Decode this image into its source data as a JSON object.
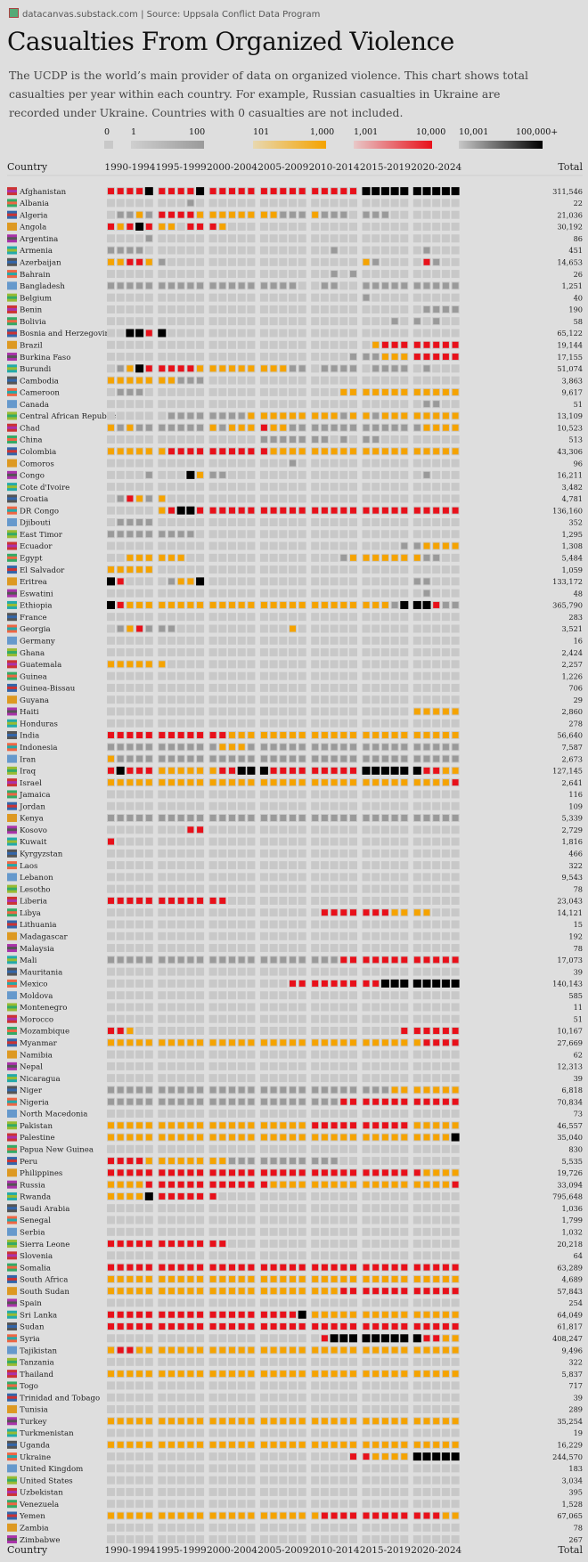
{
  "source_line": "datacanvas.substack.com  |  Source: Uppsala Conflict Data Program",
  "title": "Casualties From Organized Violence",
  "subtitle": "The UCDP is the world’s main provider of data on organized violence. This chart shows total casualties per year within each country. For example, Russian casualties in Ukraine are recorded under Ukraine. Countries with 0 casualties are not included.",
  "colors": {
    "background": "#dedede",
    "empty": "#c8c8c8",
    "tier1": "#9a9a9a",
    "tier2": "#f5a300",
    "tier3": "#e8101a",
    "tier4": "#000000"
  },
  "legend": [
    {
      "low": "0",
      "high": "",
      "color": "#c8c8c8"
    },
    {
      "low": "1",
      "high": "100",
      "color": "#9a9a9a"
    },
    {
      "low": "101",
      "high": "1,000",
      "color": "#f5a300"
    },
    {
      "low": "1,001",
      "high": "10,000",
      "color": "#e8101a"
    },
    {
      "low": "10,001",
      "high": "100,000+",
      "color": "#000000"
    }
  ],
  "chart_data": {
    "type": "heatmap",
    "description_tiers": [
      "0",
      "1-100",
      "101-1,000",
      "1,001-10,000",
      "10,001-100,000+"
    ],
    "col_header": "Country",
    "total_header": "Total",
    "period_labels": [
      "1990-1994",
      "1995-1999",
      "2000-2004",
      "2005-2009",
      "2010-2014",
      "2015-2019",
      "2020-2024"
    ],
    "years": [
      1990,
      2024
    ],
    "rows": [
      {
        "c": "Afghanistan",
        "t": "311,546",
        "v": "33334333343333333333333334444444444"
      },
      {
        "c": "Albania",
        "t": "22",
        "v": "00000000100000000000000000000000000"
      },
      {
        "c": "Algeria",
        "t": "21,036",
        "v": "01121333322222222111211101110000000"
      },
      {
        "c": "Angola",
        "t": "30,192",
        "v": "32343220333200000000000000000000000"
      },
      {
        "c": "Argentina",
        "t": "86",
        "v": "00001000000000000000000000000000000"
      },
      {
        "c": "Armenia",
        "t": "451",
        "v": "11110000000000000000001000000001000"
      },
      {
        "c": "Azerbaijan",
        "t": "14,653",
        "v": "22332100000000000000000002100003100"
      },
      {
        "c": "Bahrain",
        "t": "26",
        "v": "00000000000000000000001010000000000"
      },
      {
        "c": "Bangladesh",
        "t": "1,251",
        "v": "11111111111111111110011001111111111"
      },
      {
        "c": "Belgium",
        "t": "40",
        "v": "00000000000000000000000001000000000"
      },
      {
        "c": "Benin",
        "t": "190",
        "v": "00000000000000000000000000000001111"
      },
      {
        "c": "Bolivia",
        "t": "58",
        "v": "00000000000000000000000000001010100"
      },
      {
        "c": "Bosnia and Herzegovina",
        "t": "65,122",
        "v": "00443400000000000000000000000000000"
      },
      {
        "c": "Brazil",
        "t": "19,144",
        "v": "00000000000000000000000000233333333"
      },
      {
        "c": "Burkina Faso",
        "t": "17,155",
        "v": "00000000000000000000000011122233333"
      },
      {
        "c": "Burundi",
        "t": "51,074",
        "v": "01243333322222222211011110111101000"
      },
      {
        "c": "Cambodia",
        "t": "3,863",
        "v": "22222221110000000000000000000000000"
      },
      {
        "c": "Cameroon",
        "t": "9,617",
        "v": "01110000000000000000000222222222222"
      },
      {
        "c": "Canada",
        "t": "51",
        "v": "00000000000000000000000000000001100"
      },
      {
        "c": "Central African Republic",
        "t": "13,109",
        "v": "00000011111111222222222122122222222"
      },
      {
        "c": "Chad",
        "t": "10,523",
        "v": "21211111112122232211111111111112222"
      },
      {
        "c": "China",
        "t": "513",
        "v": "00000000000000011111110101100000000"
      },
      {
        "c": "Colombia",
        "t": "43,306",
        "v": "22222233333333332222222222222222222"
      },
      {
        "c": "Comoros",
        "t": "96",
        "v": "00000000000000000010000000000000000"
      },
      {
        "c": "Congo",
        "t": "16,211",
        "v": "00001000421100000000000000000001000"
      },
      {
        "c": "Cote d'Ivoire",
        "t": "3,482",
        "v": "00000000000000000000000000000000000"
      },
      {
        "c": "Croatia",
        "t": "4,781",
        "v": "01321200000000000000000000000000000"
      },
      {
        "c": "DR Congo",
        "t": "136,160",
        "v": "00000234433333333333333333333333333"
      },
      {
        "c": "Djibouti",
        "t": "352",
        "v": "01111000000000000000000000000000000"
      },
      {
        "c": "East Timor",
        "t": "1,295",
        "v": "11111111100000000000000000000000000"
      },
      {
        "c": "Ecuador",
        "t": "1,308",
        "v": "00000000000000000000000000000112222"
      },
      {
        "c": "Egypt",
        "t": "5,484",
        "v": "00222222000000000000000122222221100"
      },
      {
        "c": "El Salvador",
        "t": "1,059",
        "v": "22222000000000000000000000000000000"
      },
      {
        "c": "Eritrea",
        "t": "133,172",
        "v": "43000012240000000000000000000011000"
      },
      {
        "c": "Eswatini",
        "t": "48",
        "v": "00000000000000000000000000000001000"
      },
      {
        "c": "Ethiopia",
        "t": "365,790",
        "v": "43222222222222222222222222221444311"
      },
      {
        "c": "France",
        "t": "283",
        "v": "00000000000000000000000000000000000"
      },
      {
        "c": "Georgia",
        "t": "3,521",
        "v": "01231110000000000020000000000000000"
      },
      {
        "c": "Germany",
        "t": "16",
        "v": "00000000000000000000000000000000000"
      },
      {
        "c": "Ghana",
        "t": "2,424",
        "v": "00000000000000000000000000000000000"
      },
      {
        "c": "Guatemala",
        "t": "2,257",
        "v": "22222200000000000000000000000000000"
      },
      {
        "c": "Guinea",
        "t": "1,226",
        "v": "00000000000000000000000000000000000"
      },
      {
        "c": "Guinea-Bissau",
        "t": "706",
        "v": "00000000000000000000000000000000000"
      },
      {
        "c": "Guyana",
        "t": "29",
        "v": "00000000000000000000000000000000000"
      },
      {
        "c": "Haiti",
        "t": "2,860",
        "v": "00000000000000000000000000000022222"
      },
      {
        "c": "Honduras",
        "t": "278",
        "v": "00000000000000000000000000000000000"
      },
      {
        "c": "India",
        "t": "56,640",
        "v": "33333333333322222222222222222222222"
      },
      {
        "c": "Indonesia",
        "t": "7,587",
        "v": "11111111111222111111111111111111111"
      },
      {
        "c": "Iran",
        "t": "2,673",
        "v": "21111111111111111111111111111111111"
      },
      {
        "c": "Iraq",
        "t": "127,145",
        "v": "34333222222334443333333334444443322"
      },
      {
        "c": "Israel",
        "t": "2,641",
        "v": "22222222222222222222222222222222223"
      },
      {
        "c": "Jamaica",
        "t": "116",
        "v": "00000000000000000000000000000000000"
      },
      {
        "c": "Jordan",
        "t": "109",
        "v": "00000000000000000000000000000000000"
      },
      {
        "c": "Kenya",
        "t": "5,339",
        "v": "11111111111111111111111111111111111"
      },
      {
        "c": "Kosovo",
        "t": "2,729",
        "v": "00000000330000000000000000000000000"
      },
      {
        "c": "Kuwait",
        "t": "1,816",
        "v": "30000000000000000000000000000000000"
      },
      {
        "c": "Kyrgyzstan",
        "t": "466",
        "v": "00000000000000000000000000000000000"
      },
      {
        "c": "Laos",
        "t": "322",
        "v": "00000000000000000000000000000000000"
      },
      {
        "c": "Lebanon",
        "t": "9,543",
        "v": "00000000000000000000000000000000000"
      },
      {
        "c": "Lesotho",
        "t": "78",
        "v": "00000000000000000000000000000000000"
      },
      {
        "c": "Liberia",
        "t": "23,043",
        "v": "33333333333300000000000000000000000"
      },
      {
        "c": "Libya",
        "t": "14,121",
        "v": "00000000000000000000033333332222000"
      },
      {
        "c": "Lithuania",
        "t": "15",
        "v": "00000000000000000000000000000000000"
      },
      {
        "c": "Madagascar",
        "t": "192",
        "v": "00000000000000000000000000000000000"
      },
      {
        "c": "Malaysia",
        "t": "78",
        "v": "00000000000000000000000000000000000"
      },
      {
        "c": "Mali",
        "t": "17,073",
        "v": "11111111111111111111111333333333333"
      },
      {
        "c": "Mauritania",
        "t": "39",
        "v": "00000000000000000000000000000000000"
      },
      {
        "c": "Mexico",
        "t": "140,143",
        "v": "00000000000000000033333333344444444"
      },
      {
        "c": "Moldova",
        "t": "585",
        "v": "00000000000000000000000000000000000"
      },
      {
        "c": "Montenegro",
        "t": "11",
        "v": "00000000000000000000000000000000000"
      },
      {
        "c": "Morocco",
        "t": "51",
        "v": "00000000000000000000000000000000000"
      },
      {
        "c": "Mozambique",
        "t": "10,167",
        "v": "33200000000000000000000000000333333"
      },
      {
        "c": "Myanmar",
        "t": "27,669",
        "v": "22222222222222222222222222222223333"
      },
      {
        "c": "Namibia",
        "t": "62",
        "v": "00000000000000000000000000000000000"
      },
      {
        "c": "Nepal",
        "t": "12,313",
        "v": "00000000000000000000000000000000000"
      },
      {
        "c": "Nicaragua",
        "t": "39",
        "v": "00000000000000000000000000000000000"
      },
      {
        "c": "Niger",
        "t": "6,818",
        "v": "11111111111111111111111111112222222"
      },
      {
        "c": "Nigeria",
        "t": "70,834",
        "v": "11111111111111111111111333333333333"
      },
      {
        "c": "North Macedonia",
        "t": "73",
        "v": "00000000000000000000000000000000000"
      },
      {
        "c": "Pakistan",
        "t": "46,557",
        "v": "22222222222222222222333333333322222"
      },
      {
        "c": "Palestine",
        "t": "35,040",
        "v": "22222222222222222222222222222222224"
      },
      {
        "c": "Papua New Guinea",
        "t": "830",
        "v": "00000000000000000000000000000000000"
      },
      {
        "c": "Peru",
        "t": "5,535",
        "v": "33332222222211111111111000000000000"
      },
      {
        "c": "Philippines",
        "t": "19,726",
        "v": "33333333333333333333333333333332222"
      },
      {
        "c": "Russia",
        "t": "33,094",
        "v": "22223333333333332222222222222222223"
      },
      {
        "c": "Rwanda",
        "t": "795,648",
        "v": "22224333333000000000000000000000000"
      },
      {
        "c": "Saudi Arabia",
        "t": "1,036",
        "v": "00000000000000000000000000000000000"
      },
      {
        "c": "Senegal",
        "t": "1,799",
        "v": "00000000000000000000000000000000000"
      },
      {
        "c": "Serbia",
        "t": "1,032",
        "v": "00000000000000000000000000000000000"
      },
      {
        "c": "Sierra Leone",
        "t": "20,218",
        "v": "33333333333300000000000000000000000"
      },
      {
        "c": "Slovenia",
        "t": "64",
        "v": "00000000000000000000000000000000000"
      },
      {
        "c": "Somalia",
        "t": "63,289",
        "v": "33333333333333333333333333333333333"
      },
      {
        "c": "South Africa",
        "t": "4,689",
        "v": "22222222222222222222222222222222222"
      },
      {
        "c": "South Sudan",
        "t": "57,843",
        "v": "22222222222222222222222333333333333"
      },
      {
        "c": "Spain",
        "t": "254",
        "v": "00000000000000000000000000000000000"
      },
      {
        "c": "Sri Lanka",
        "t": "64,049",
        "v": "33333333333333333334222222222222222"
      },
      {
        "c": "Sudan",
        "t": "61,817",
        "v": "33333333333333333333333333333333333"
      },
      {
        "c": "Syria",
        "t": "408,247",
        "v": "00000000000000000000034444444443322"
      },
      {
        "c": "Tajikistan",
        "t": "9,496",
        "v": "23322222222222222222222222222222222"
      },
      {
        "c": "Tanzania",
        "t": "322",
        "v": "00000000000000000000000000000000000"
      },
      {
        "c": "Thailand",
        "t": "5,837",
        "v": "22222222222222222222222222222222222"
      },
      {
        "c": "Togo",
        "t": "717",
        "v": "00000000000000000000000000000000000"
      },
      {
        "c": "Trinidad and Tobago",
        "t": "39",
        "v": "00000000000000000000000000000000000"
      },
      {
        "c": "Tunisia",
        "t": "289",
        "v": "00000000000000000000000000000000000"
      },
      {
        "c": "Turkey",
        "t": "35,254",
        "v": "22222222222222222222222222222222222"
      },
      {
        "c": "Turkmenistan",
        "t": "19",
        "v": "00000000000000000000000000000000000"
      },
      {
        "c": "Uganda",
        "t": "16,229",
        "v": "22222222222222222222222222222222222"
      },
      {
        "c": "Ukraine",
        "t": "244,570",
        "v": "00000000000000000000000033222244444"
      },
      {
        "c": "United Kingdom",
        "t": "183",
        "v": "00000000000000000000000000000000000"
      },
      {
        "c": "United States",
        "t": "3,034",
        "v": "00000000000000000000000000000000000"
      },
      {
        "c": "Uzbekistan",
        "t": "395",
        "v": "00000000000000000000000000000000000"
      },
      {
        "c": "Venezuela",
        "t": "1,528",
        "v": "00000000000000000000000000000000000"
      },
      {
        "c": "Yemen",
        "t": "67,065",
        "v": "22222222222222222222233333333333322"
      },
      {
        "c": "Zambia",
        "t": "78",
        "v": "00000000000000000000000000000000000"
      },
      {
        "c": "Zimbabwe",
        "t": "267",
        "v": "00000000000000000000000000000000000"
      }
    ]
  }
}
